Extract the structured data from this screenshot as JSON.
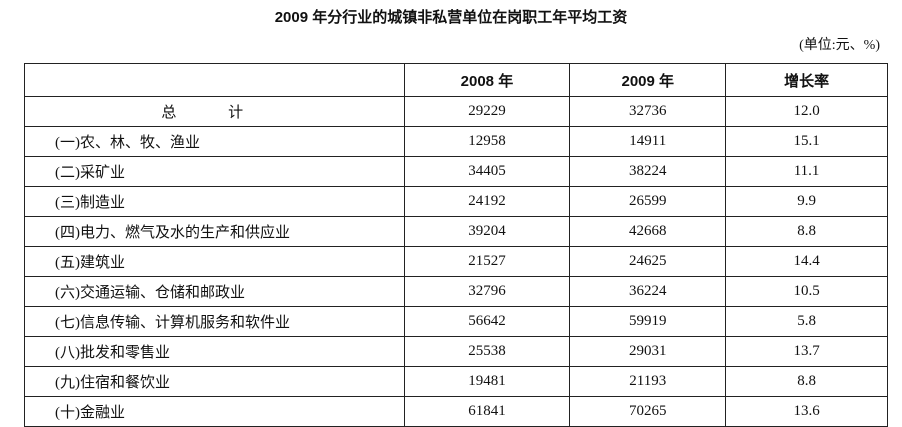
{
  "title": "2009 年分行业的城镇非私营单位在岗职工年平均工资",
  "unit": "(单位:元、%)",
  "columns": [
    "",
    "2008 年",
    "2009 年",
    "增长率"
  ],
  "rows": [
    {
      "name": "总 计",
      "y2008": "29229",
      "y2009": "32736",
      "growth": "12.0"
    },
    {
      "name": "(一)农、林、牧、渔业",
      "y2008": "12958",
      "y2009": "14911",
      "growth": "15.1"
    },
    {
      "name": "(二)采矿业",
      "y2008": "34405",
      "y2009": "38224",
      "growth": "11.1"
    },
    {
      "name": "(三)制造业",
      "y2008": "24192",
      "y2009": "26599",
      "growth": "9.9"
    },
    {
      "name": "(四)电力、燃气及水的生产和供应业",
      "y2008": "39204",
      "y2009": "42668",
      "growth": "8.8"
    },
    {
      "name": "(五)建筑业",
      "y2008": "21527",
      "y2009": "24625",
      "growth": "14.4"
    },
    {
      "name": "(六)交通运输、仓储和邮政业",
      "y2008": "32796",
      "y2009": "36224",
      "growth": "10.5"
    },
    {
      "name": "(七)信息传输、计算机服务和软件业",
      "y2008": "56642",
      "y2009": "59919",
      "growth": "5.8"
    },
    {
      "name": "(八)批发和零售业",
      "y2008": "25538",
      "y2009": "29031",
      "growth": "13.7"
    },
    {
      "name": "(九)住宿和餐饮业",
      "y2008": "19481",
      "y2009": "21193",
      "growth": "8.8"
    },
    {
      "name": "(十)金融业",
      "y2008": "61841",
      "y2009": "70265",
      "growth": "13.6"
    }
  ]
}
